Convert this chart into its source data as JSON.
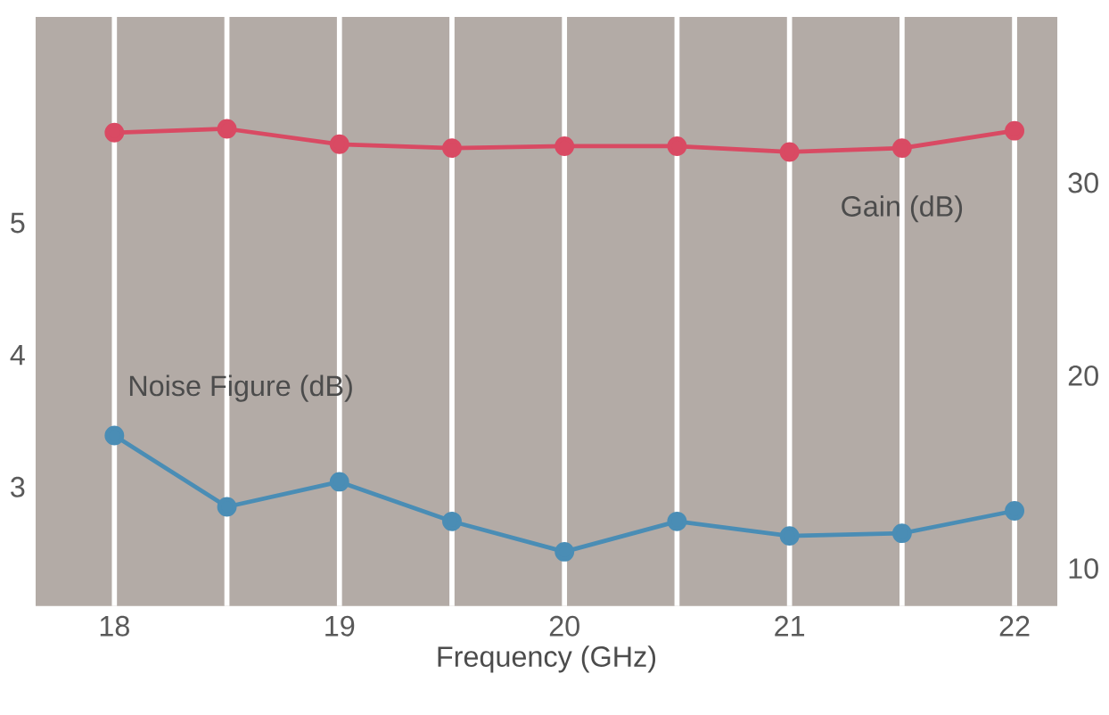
{
  "chart_data": {
    "type": "line",
    "xlabel": "Frequency (GHz)",
    "x": [
      18,
      18.5,
      19,
      19.5,
      20,
      20.5,
      21,
      21.5,
      22
    ],
    "series": [
      {
        "name": "Noise Figure (dB)",
        "color": "#4a8db5",
        "values": [
          3.39,
          2.85,
          3.04,
          2.74,
          2.51,
          2.74,
          2.63,
          2.65,
          2.82
        ]
      },
      {
        "name": "Gain (dB)",
        "color": "#d94a63",
        "axis": "y2",
        "values": [
          32.6,
          32.8,
          32.0,
          31.8,
          31.9,
          31.9,
          31.6,
          31.8,
          32.7
        ]
      }
    ],
    "xlim": [
      17.65,
      22.19
    ],
    "xticks": [
      18,
      {
        "value": 18.5,
        "label": null
      },
      19,
      {
        "value": 19.5,
        "label": null
      },
      20,
      {
        "value": 20.5,
        "label": null
      },
      21,
      {
        "value": 21.5,
        "label": null
      },
      22
    ],
    "ylim": [
      2.1,
      6.56
    ],
    "yticks": [
      3,
      4,
      5
    ],
    "y2lim": [
      8.06,
      38.6
    ],
    "y2ticks": [
      10,
      20,
      30
    ],
    "grid": "x",
    "marker": "circle",
    "line_style": "solid",
    "legend": false
  }
}
